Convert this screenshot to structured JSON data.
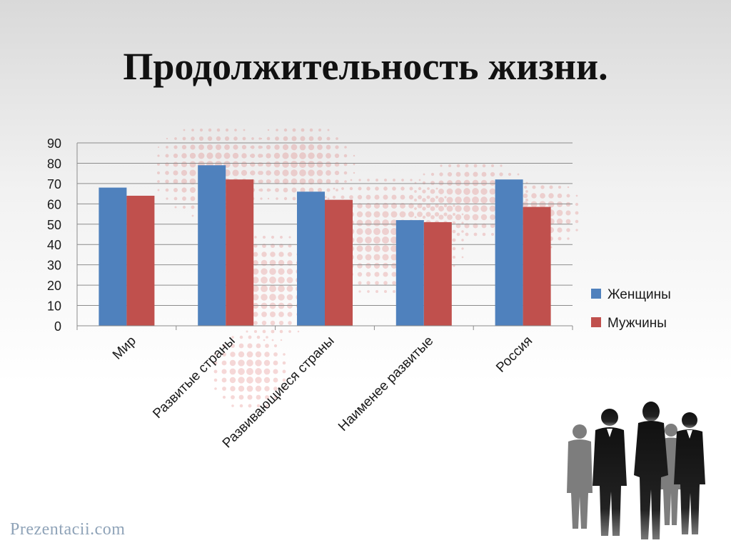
{
  "title": "Продолжительность жизни.",
  "watermark": "Prezentacii.com",
  "colors": {
    "women": "#4f81bd",
    "men": "#c0504d",
    "grid": "#8c8c8c",
    "text": "#1a1a1a"
  },
  "icons": {
    "background_map": "world-map-dots-icon",
    "people": "business-people-silhouette-icon"
  },
  "chart_data": {
    "type": "bar",
    "title": "",
    "xlabel": "",
    "ylabel": "",
    "ylim": [
      0,
      90
    ],
    "yticks": [
      0,
      10,
      20,
      30,
      40,
      50,
      60,
      70,
      80,
      90
    ],
    "grid": true,
    "legend_position": "right",
    "categories": [
      "Мир",
      "Развитые страны",
      "Развивающиеся страны",
      "Наименее развитые",
      "Россия"
    ],
    "series": [
      {
        "name": "Женщины",
        "color": "#4f81bd",
        "values": [
          68,
          79,
          66,
          52,
          72
        ]
      },
      {
        "name": "Мужчины",
        "color": "#c0504d",
        "values": [
          64,
          72,
          62,
          51,
          58.5
        ]
      }
    ]
  }
}
